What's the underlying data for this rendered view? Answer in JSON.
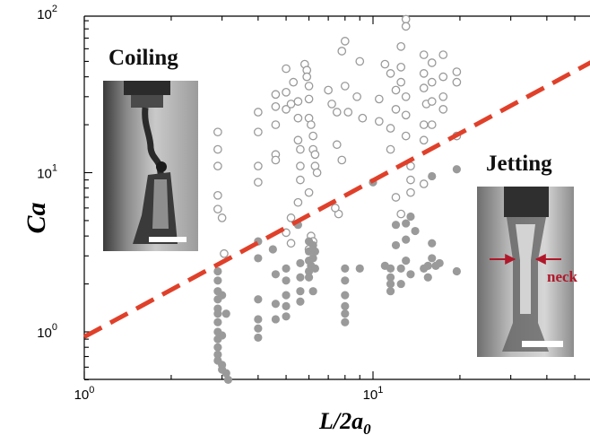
{
  "chart_data": {
    "type": "scatter",
    "title": "",
    "xlabel": "L/2a",
    "xlabel_subscript": "0",
    "ylabel": "Ca",
    "x_scale": "log",
    "y_scale": "log",
    "xlim": [
      1,
      60
    ],
    "ylim": [
      0.5,
      100
    ],
    "x_ticks": [
      {
        "value": 1,
        "base": "10",
        "exp": "0"
      },
      {
        "value": 10,
        "base": "10",
        "exp": "1"
      }
    ],
    "y_ticks": [
      {
        "value": 1,
        "base": "10",
        "exp": "0"
      },
      {
        "value": 10,
        "base": "10",
        "exp": "1"
      },
      {
        "value": 100,
        "base": "10",
        "exp": "2"
      }
    ],
    "grid": false,
    "colors": {
      "points": "#9a9a9a",
      "boundary": "#e0402a",
      "neck": "#b0182a"
    },
    "boundary_line": {
      "style": "dashed",
      "x": [
        1,
        60
      ],
      "y": [
        0.93,
        52
      ]
    },
    "insets": [
      {
        "name": "coiling",
        "title": "Coiling"
      },
      {
        "name": "jetting",
        "title": "Jetting",
        "annotation": "neck"
      }
    ],
    "series": [
      {
        "marker": "open-circle",
        "points": [
          [
            2.9,
            18
          ],
          [
            2.9,
            14
          ],
          [
            2.9,
            11
          ],
          [
            2.9,
            7.2
          ],
          [
            2.9,
            5.9
          ],
          [
            3.0,
            5.2
          ],
          [
            3.05,
            3.1
          ],
          [
            4.0,
            24
          ],
          [
            4.0,
            18
          ],
          [
            4.0,
            11
          ],
          [
            4.0,
            8.7
          ],
          [
            4.6,
            31
          ],
          [
            4.6,
            26
          ],
          [
            4.6,
            20
          ],
          [
            4.6,
            13
          ],
          [
            4.6,
            12
          ],
          [
            5.0,
            45
          ],
          [
            5.0,
            32
          ],
          [
            5.0,
            25
          ],
          [
            5.2,
            27
          ],
          [
            5.3,
            37
          ],
          [
            5.5,
            28
          ],
          [
            5.5,
            22
          ],
          [
            5.5,
            16
          ],
          [
            5.6,
            14
          ],
          [
            5.6,
            11
          ],
          [
            5.6,
            9
          ],
          [
            5.8,
            48
          ],
          [
            5.9,
            44
          ],
          [
            5.9,
            40
          ],
          [
            6.0,
            35
          ],
          [
            6.0,
            29
          ],
          [
            6.0,
            22
          ],
          [
            6.1,
            20
          ],
          [
            6.2,
            17
          ],
          [
            6.2,
            14
          ],
          [
            6.3,
            13
          ],
          [
            6.3,
            11
          ],
          [
            6.4,
            10
          ],
          [
            6.0,
            7.5
          ],
          [
            5.5,
            6.5
          ],
          [
            5.2,
            5.2
          ],
          [
            5.0,
            4.2
          ],
          [
            5.2,
            3.6
          ],
          [
            6.1,
            4.0
          ],
          [
            6.2,
            3.7
          ],
          [
            6.0,
            3.3
          ],
          [
            7.0,
            33
          ],
          [
            7.2,
            27
          ],
          [
            7.5,
            24
          ],
          [
            7.5,
            15
          ],
          [
            7.8,
            12
          ],
          [
            7.6,
            5.5
          ],
          [
            7.4,
            6.0
          ],
          [
            8.0,
            67
          ],
          [
            8.0,
            35
          ],
          [
            8.2,
            24
          ],
          [
            7.8,
            58
          ],
          [
            9.0,
            50
          ],
          [
            9.2,
            22
          ],
          [
            8.8,
            30
          ],
          [
            10.5,
            29
          ],
          [
            10.5,
            21
          ],
          [
            11.0,
            48
          ],
          [
            11.5,
            42
          ],
          [
            11.5,
            19
          ],
          [
            11.5,
            14
          ],
          [
            12.0,
            33
          ],
          [
            12.0,
            25
          ],
          [
            12.5,
            62
          ],
          [
            12.5,
            46
          ],
          [
            12.5,
            37
          ],
          [
            13.0,
            92
          ],
          [
            13.0,
            83
          ],
          [
            13.0,
            30
          ],
          [
            13.0,
            23
          ],
          [
            13.0,
            17
          ],
          [
            13.5,
            11
          ],
          [
            13.5,
            9
          ],
          [
            13.5,
            7.5
          ],
          [
            12.0,
            7.0
          ],
          [
            12.5,
            5.5
          ],
          [
            15.0,
            55
          ],
          [
            15.0,
            42
          ],
          [
            15.0,
            34
          ],
          [
            15.3,
            27
          ],
          [
            15.0,
            20
          ],
          [
            15.0,
            16
          ],
          [
            15.0,
            8.5
          ],
          [
            16.0,
            49
          ],
          [
            16.0,
            37
          ],
          [
            16.0,
            28
          ],
          [
            16.0,
            20
          ],
          [
            17.5,
            55
          ],
          [
            17.5,
            40
          ],
          [
            17.5,
            30
          ],
          [
            17.5,
            25
          ],
          [
            19.5,
            43
          ],
          [
            19.5,
            37
          ],
          [
            19.5,
            17
          ]
        ]
      },
      {
        "marker": "filled-circle",
        "points": [
          [
            2.9,
            2.4
          ],
          [
            2.9,
            2.1
          ],
          [
            2.9,
            1.8
          ],
          [
            2.9,
            1.6
          ],
          [
            2.9,
            1.4
          ],
          [
            2.9,
            1.3
          ],
          [
            2.9,
            1.15
          ],
          [
            2.9,
            1.0
          ],
          [
            2.9,
            0.9
          ],
          [
            2.9,
            0.8
          ],
          [
            2.9,
            0.72
          ],
          [
            2.9,
            0.66
          ],
          [
            3.0,
            0.62
          ],
          [
            3.0,
            0.58
          ],
          [
            3.1,
            0.55
          ],
          [
            3.15,
            0.5
          ],
          [
            3.0,
            1.7
          ],
          [
            3.1,
            1.3
          ],
          [
            3.0,
            0.95
          ],
          [
            4.0,
            3.7
          ],
          [
            4.0,
            2.9
          ],
          [
            4.0,
            1.6
          ],
          [
            4.0,
            1.2
          ],
          [
            4.0,
            1.05
          ],
          [
            4.0,
            0.92
          ],
          [
            4.5,
            3.3
          ],
          [
            4.6,
            2.3
          ],
          [
            4.6,
            1.5
          ],
          [
            4.6,
            1.2
          ],
          [
            5.0,
            2.5
          ],
          [
            5.0,
            2.1
          ],
          [
            5.0,
            1.7
          ],
          [
            5.0,
            1.45
          ],
          [
            5.0,
            1.25
          ],
          [
            5.5,
            4.7
          ],
          [
            5.6,
            2.7
          ],
          [
            5.6,
            2.2
          ],
          [
            5.6,
            1.8
          ],
          [
            5.6,
            1.55
          ],
          [
            6.0,
            3.7
          ],
          [
            6.0,
            3.2
          ],
          [
            6.0,
            2.8
          ],
          [
            6.0,
            2.4
          ],
          [
            6.1,
            2.6
          ],
          [
            6.2,
            2.9
          ],
          [
            6.3,
            2.5
          ],
          [
            6.2,
            3.5
          ],
          [
            6.3,
            3.2
          ],
          [
            6.0,
            2.2
          ],
          [
            6.2,
            1.8
          ],
          [
            8.0,
            2.5
          ],
          [
            8.0,
            2.1
          ],
          [
            8.0,
            1.7
          ],
          [
            8.0,
            1.45
          ],
          [
            8.0,
            1.3
          ],
          [
            8.0,
            1.15
          ],
          [
            9.0,
            2.5
          ],
          [
            10.0,
            8.7
          ],
          [
            11.0,
            2.6
          ],
          [
            11.5,
            2.5
          ],
          [
            11.5,
            2.2
          ],
          [
            11.5,
            2.0
          ],
          [
            11.5,
            1.8
          ],
          [
            12.0,
            4.7
          ],
          [
            12.0,
            3.5
          ],
          [
            12.5,
            2.5
          ],
          [
            12.5,
            2.0
          ],
          [
            13.0,
            4.8
          ],
          [
            13.0,
            3.8
          ],
          [
            13.0,
            2.8
          ],
          [
            13.5,
            5.3
          ],
          [
            14.0,
            4.3
          ],
          [
            13.5,
            2.3
          ],
          [
            15.0,
            2.5
          ],
          [
            15.5,
            2.6
          ],
          [
            15.5,
            2.2
          ],
          [
            16.0,
            3.6
          ],
          [
            16.0,
            2.9
          ],
          [
            16.5,
            2.6
          ],
          [
            17.0,
            2.7
          ],
          [
            16.0,
            9.5
          ],
          [
            19.5,
            10.5
          ],
          [
            19.5,
            2.4
          ]
        ]
      }
    ]
  }
}
